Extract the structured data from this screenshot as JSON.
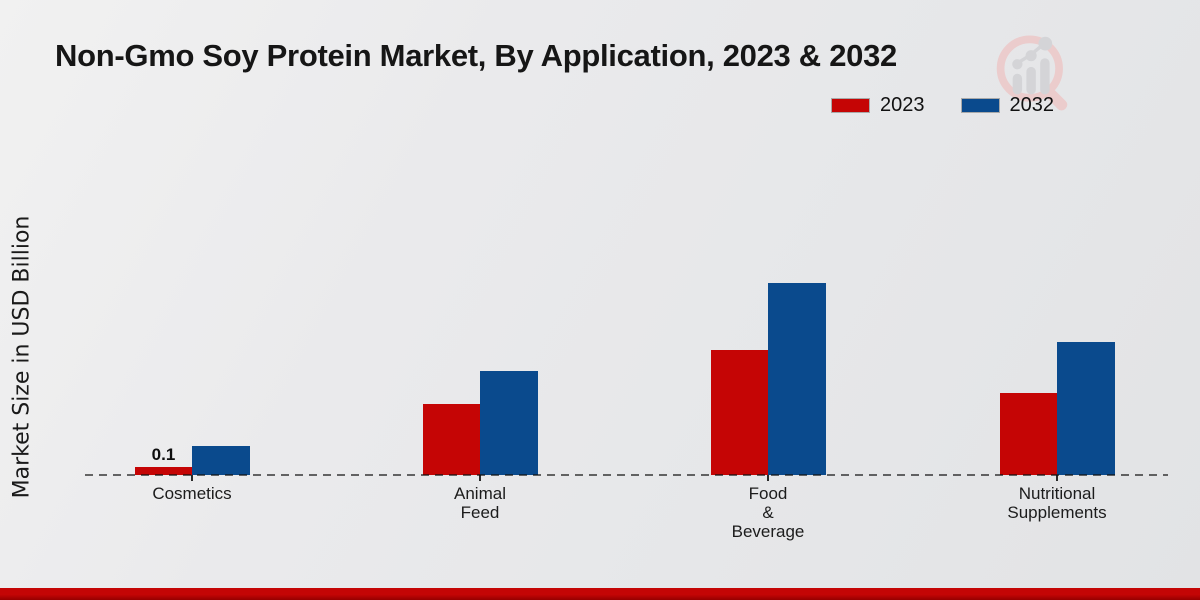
{
  "page": {
    "title": "Non-Gmo Soy Protein Market, By Application, 2023 & 2032",
    "ylabel": "Market Size in USD Billion"
  },
  "chart_data": {
    "type": "bar",
    "title": "Non-Gmo Soy Protein Market, By Application, 2023 & 2032",
    "xlabel": "",
    "ylabel": "Market Size in USD Billion",
    "categories": [
      "Cosmetics",
      "Animal Feed",
      "Food & Beverage",
      "Nutritional Supplements"
    ],
    "category_lines": [
      [
        "Cosmetics"
      ],
      [
        "Animal",
        "Feed"
      ],
      [
        "Food",
        "&",
        "Beverage"
      ],
      [
        "Nutritional",
        "Supplements"
      ]
    ],
    "series": [
      {
        "name": "2023",
        "color": "#c50505",
        "values": [
          0.1,
          0.89,
          1.56,
          1.02
        ]
      },
      {
        "name": "2032",
        "color": "#0a4a8d",
        "values": [
          0.36,
          1.3,
          2.4,
          1.66
        ]
      }
    ],
    "data_labels": [
      {
        "series": "2023",
        "category": "Cosmetics",
        "text": "0.1"
      }
    ],
    "ylim": [
      0,
      2.6
    ],
    "grid": false,
    "baseline_style": "dashed",
    "legend_position": "top-right"
  },
  "footer": {
    "accent_color": "#c40505"
  },
  "watermark": {
    "icon": "magnifier-bar-chart-logo"
  }
}
